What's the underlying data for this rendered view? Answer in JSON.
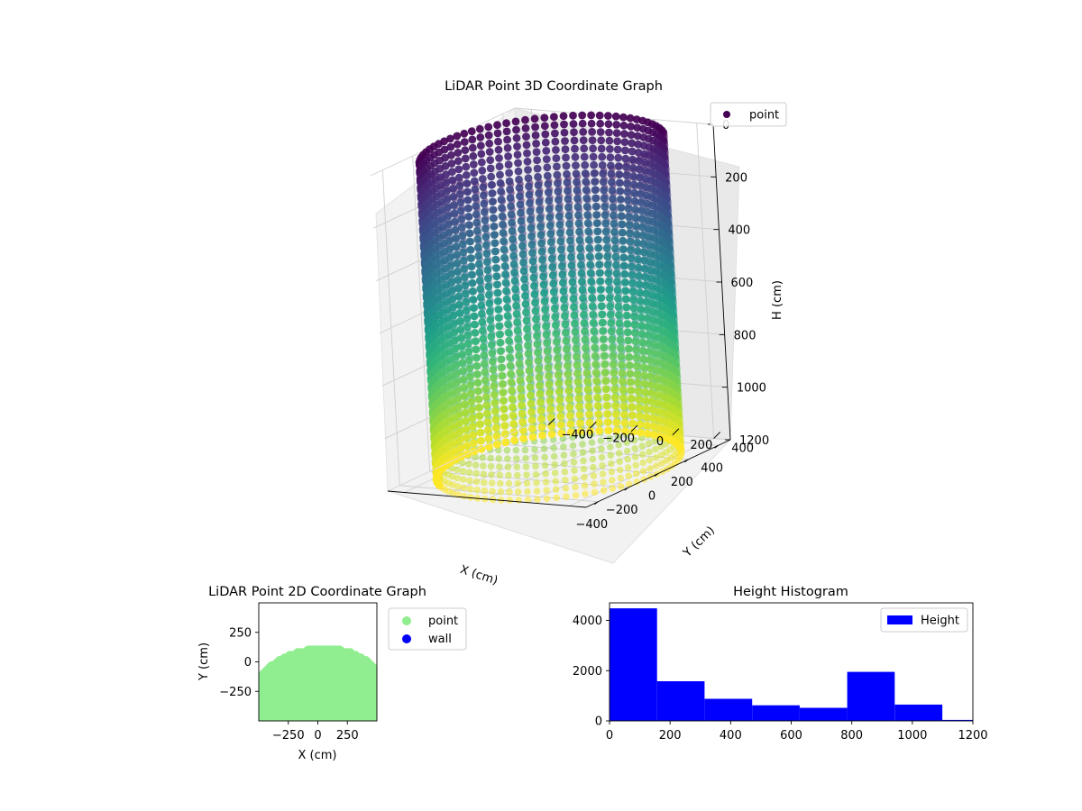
{
  "figure": {
    "background": "#ffffff"
  },
  "chart_data": [
    {
      "type": "scatter",
      "projection": "3d",
      "title": "LiDAR Point 3D Coordinate Graph",
      "xlabel": "X (cm)",
      "ylabel": "Y (cm)",
      "zlabel": "H (cm)",
      "xlim": [
        -480,
        480
      ],
      "ylim": [
        -480,
        480
      ],
      "zlim": [
        1200,
        0
      ],
      "z_inverted": true,
      "xticks": [
        -400,
        -200,
        0,
        200,
        400
      ],
      "yticks": [
        -400,
        -200,
        0,
        200,
        400
      ],
      "zticks": [
        0,
        200,
        400,
        600,
        800,
        1000,
        1200
      ],
      "colormap": "viridis",
      "shape": "cylinder",
      "cylinder_radius": 480,
      "height_range": [
        0,
        1200
      ],
      "legend": {
        "position": "top-right",
        "entries": [
          {
            "label": "point",
            "color": "#440154"
          }
        ]
      },
      "grid": true
    },
    {
      "type": "scatter",
      "title": "LiDAR Point 2D Coordinate Graph",
      "xlabel": "X (cm)",
      "ylabel": "Y (cm)",
      "xlim": [
        -500,
        500
      ],
      "ylim": [
        -500,
        500
      ],
      "xticks": [
        -250,
        0,
        250
      ],
      "yticks": [
        -250,
        0,
        250
      ],
      "series": [
        {
          "name": "point",
          "color": "#90ee90"
        },
        {
          "name": "wall",
          "color": "#0000ff"
        }
      ],
      "legend": {
        "position": "outside-right"
      },
      "grid": false
    },
    {
      "type": "bar",
      "subtype": "histogram",
      "title": "Height Histogram",
      "xlim": [
        0,
        1200
      ],
      "ylim": [
        0,
        4700
      ],
      "xticks": [
        0,
        200,
        400,
        600,
        800,
        1000,
        1200
      ],
      "yticks": [
        0,
        2000,
        4000
      ],
      "bin_edges": [
        0,
        157,
        314,
        471,
        628,
        785,
        942,
        1099,
        1256
      ],
      "values": [
        4480,
        1580,
        880,
        620,
        520,
        1950,
        650,
        40
      ],
      "series": [
        {
          "name": "Height",
          "color": "#0000ff"
        }
      ],
      "legend": {
        "position": "top-right"
      },
      "grid": false
    }
  ]
}
